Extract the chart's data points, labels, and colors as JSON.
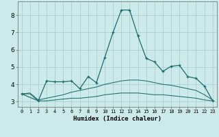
{
  "xlabel": "Humidex (Indice chaleur)",
  "bg_color": "#cceaea",
  "grid_color": "#aacfcf",
  "line_color": "#1a6b6b",
  "xlim": [
    -0.5,
    23.5
  ],
  "ylim": [
    2.7,
    8.8
  ],
  "xticks": [
    0,
    1,
    2,
    3,
    4,
    5,
    6,
    7,
    8,
    9,
    10,
    11,
    12,
    13,
    14,
    15,
    16,
    17,
    18,
    19,
    20,
    21,
    22,
    23
  ],
  "yticks": [
    3,
    4,
    5,
    6,
    7,
    8
  ],
  "series": [
    {
      "x": [
        0,
        1,
        2,
        3,
        4,
        5,
        6,
        7,
        8,
        9,
        10,
        11,
        12,
        13,
        14,
        15,
        16,
        17,
        18,
        19,
        20,
        21,
        22,
        23
      ],
      "y": [
        3.45,
        3.45,
        3.05,
        3.05,
        3.1,
        3.15,
        3.2,
        3.2,
        3.25,
        3.3,
        3.4,
        3.45,
        3.5,
        3.5,
        3.5,
        3.45,
        3.4,
        3.4,
        3.35,
        3.3,
        3.25,
        3.2,
        3.1,
        3.05
      ],
      "marker": false
    },
    {
      "x": [
        0,
        1,
        2,
        3,
        4,
        5,
        6,
        7,
        8,
        9,
        10,
        11,
        12,
        13,
        14,
        15,
        16,
        17,
        18,
        19,
        20,
        21,
        22,
        23
      ],
      "y": [
        3.45,
        3.5,
        3.1,
        3.2,
        3.3,
        3.4,
        3.55,
        3.65,
        3.75,
        3.85,
        4.0,
        4.1,
        4.2,
        4.25,
        4.25,
        4.2,
        4.1,
        4.0,
        3.95,
        3.85,
        3.75,
        3.65,
        3.4,
        3.1
      ],
      "marker": false
    },
    {
      "x": [
        0,
        2,
        3,
        4,
        5,
        6,
        7,
        8,
        9,
        10,
        11,
        12,
        13,
        14,
        15,
        16,
        17,
        18,
        19,
        20,
        21,
        22,
        23
      ],
      "y": [
        3.45,
        3.05,
        4.2,
        4.15,
        4.15,
        4.2,
        3.75,
        4.45,
        4.1,
        5.55,
        7.0,
        8.3,
        8.3,
        6.8,
        5.5,
        5.3,
        4.75,
        5.05,
        5.1,
        4.45,
        4.35,
        3.9,
        3.05
      ],
      "marker": true
    }
  ]
}
